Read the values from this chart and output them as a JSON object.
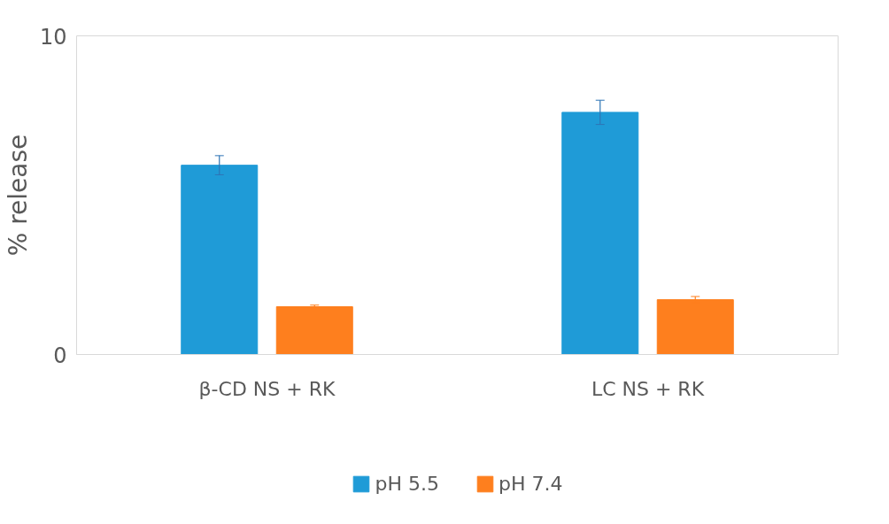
{
  "chart_data": {
    "type": "bar",
    "ylabel": "% release",
    "categories": [
      "β-CD NS + RK",
      "LC NS + RK"
    ],
    "series": [
      {
        "name": "pH 5.5",
        "color": "#1f9bd7",
        "values": [
          5.94,
          7.6
        ],
        "errors": [
          0.3,
          0.38
        ]
      },
      {
        "name": "pH 7.4",
        "color": "#fe7f1e",
        "values": [
          1.5,
          1.72
        ],
        "errors": [
          0.05,
          0.1
        ]
      }
    ],
    "ylim": [
      0,
      10
    ],
    "yticks": [
      0,
      10
    ],
    "grid": false,
    "legend": "bottom"
  }
}
